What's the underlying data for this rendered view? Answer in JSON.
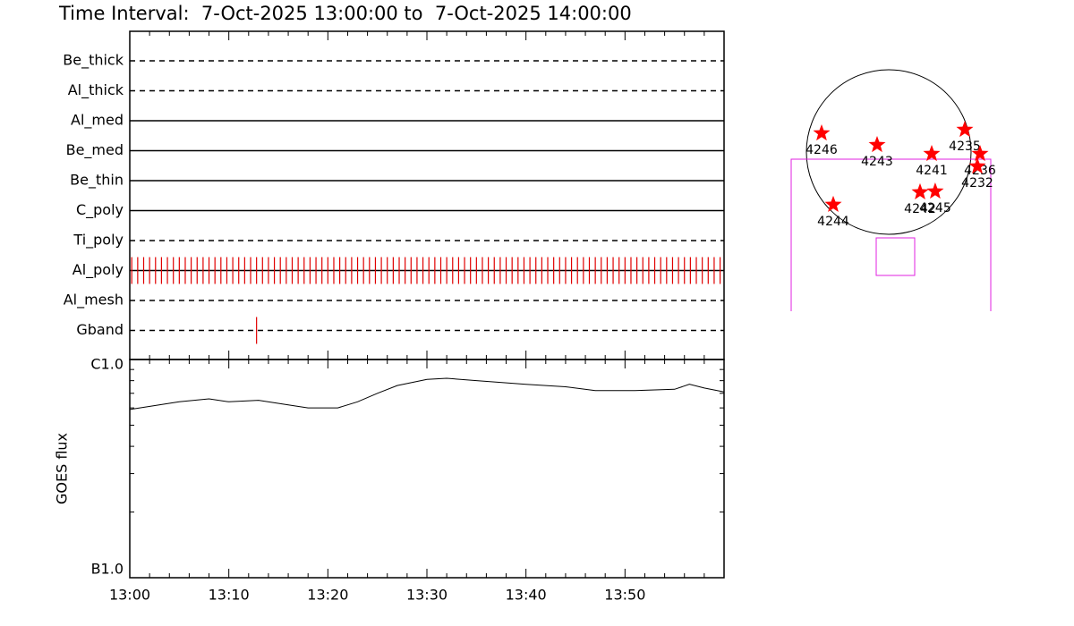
{
  "chart_data": [
    {
      "type": "timeline",
      "title": "Time Interval:  7-Oct-2025 13:00:00 to  7-Oct-2025 14:00:00",
      "xlim": [
        0,
        60
      ],
      "obs_color": "#e00000",
      "filters": [
        {
          "name": "Be_thick",
          "style": "dashed",
          "obs": []
        },
        {
          "name": "Al_thick",
          "style": "dashed",
          "obs": []
        },
        {
          "name": "Al_med",
          "style": "solid",
          "obs": []
        },
        {
          "name": "Be_med",
          "style": "solid",
          "obs": []
        },
        {
          "name": "Be_thin",
          "style": "solid",
          "obs": []
        },
        {
          "name": "C_poly",
          "style": "solid",
          "obs": []
        },
        {
          "name": "Ti_poly",
          "style": "dashed",
          "obs": []
        },
        {
          "name": "Al_poly",
          "style": "solid",
          "obs": [
            0.2,
            0.8,
            1.4,
            2,
            2.6,
            3.2,
            3.8,
            4.4,
            5,
            5.6,
            6.2,
            6.8,
            7.4,
            8,
            8.6,
            9.2,
            9.8,
            10.4,
            11,
            11.6,
            12.2,
            12.8,
            13.4,
            14,
            14.6,
            15.2,
            15.8,
            16.4,
            17,
            17.6,
            18.2,
            18.8,
            19.4,
            20,
            20.6,
            21.2,
            21.8,
            22.4,
            23,
            23.6,
            24.2,
            24.8,
            25.4,
            26,
            26.6,
            27.2,
            27.8,
            28.4,
            29,
            29.6,
            30.2,
            30.8,
            31.4,
            32,
            32.6,
            33.2,
            33.8,
            34.4,
            35,
            35.6,
            36.2,
            36.8,
            37.4,
            38,
            38.6,
            39.2,
            39.8,
            40.4,
            41,
            41.6,
            42.2,
            42.8,
            43.4,
            44,
            44.6,
            45.2,
            45.8,
            46.4,
            47,
            47.6,
            48.2,
            48.8,
            49.4,
            50,
            50.6,
            51.2,
            51.8,
            52.4,
            53,
            53.6,
            54.2,
            54.8,
            55.4,
            56,
            56.6,
            57.2,
            57.8,
            58.4,
            59,
            59.6
          ]
        },
        {
          "name": "Al_mesh",
          "style": "dashed",
          "obs": []
        },
        {
          "name": "Gband",
          "style": "dashed",
          "obs": [
            12.8
          ]
        }
      ]
    },
    {
      "type": "line",
      "ylabel": "GOES flux",
      "log_scale": true,
      "color": "#000000",
      "x": [
        0,
        5,
        8,
        10,
        13,
        16,
        18,
        21,
        23,
        25,
        27,
        30,
        32,
        35,
        40,
        44,
        47,
        51,
        55,
        56.5,
        58,
        60
      ],
      "values": [
        5.9e-07,
        6.4e-07,
        6.6e-07,
        6.4e-07,
        6.5e-07,
        6.2e-07,
        6e-07,
        6e-07,
        6.4e-07,
        7e-07,
        7.6e-07,
        8.1e-07,
        8.2e-07,
        8e-07,
        7.7e-07,
        7.5e-07,
        7.2e-07,
        7.2e-07,
        7.3e-07,
        7.7e-07,
        7.4e-07,
        7.1e-07
      ],
      "xlim": [
        0,
        60
      ],
      "xticks": [
        {
          "value": 0,
          "label": "13:00"
        },
        {
          "value": 10,
          "label": "13:10"
        },
        {
          "value": 20,
          "label": "13:20"
        },
        {
          "value": 30,
          "label": "13:30"
        },
        {
          "value": 40,
          "label": "13:40"
        },
        {
          "value": 50,
          "label": "13:50"
        }
      ],
      "minor_xticks": [
        2,
        4,
        6,
        8,
        12,
        14,
        16,
        18,
        22,
        24,
        26,
        28,
        32,
        34,
        36,
        38,
        42,
        44,
        46,
        48,
        52,
        54,
        56,
        58
      ],
      "ylim": [
        1e-07,
        1e-06
      ],
      "yticks": [
        {
          "value": 1e-07,
          "label": "B1.0"
        },
        {
          "value": 1e-06,
          "label": "C1.0"
        }
      ],
      "minor_yticks": [
        2e-07,
        3e-07,
        4e-07,
        5e-07,
        6e-07,
        7e-07,
        8e-07,
        9e-07
      ]
    },
    {
      "type": "map",
      "color": "#ff0000",
      "points": [
        {
          "label": "4246",
          "x": -783,
          "y": 219
        },
        {
          "label": "4243",
          "x": -136,
          "y": 83
        },
        {
          "label": "4241",
          "x": 501,
          "y": -21
        },
        {
          "label": "4235",
          "x": 887,
          "y": 261
        },
        {
          "label": "4236",
          "x": 1064,
          "y": -21
        },
        {
          "label": "4232",
          "x": 1033,
          "y": -167
        },
        {
          "label": "4242",
          "x": 365,
          "y": -469
        },
        {
          "label": "4245",
          "x": 542,
          "y": -459
        },
        {
          "label": "4244",
          "x": -647,
          "y": -615
        }
      ]
    }
  ]
}
